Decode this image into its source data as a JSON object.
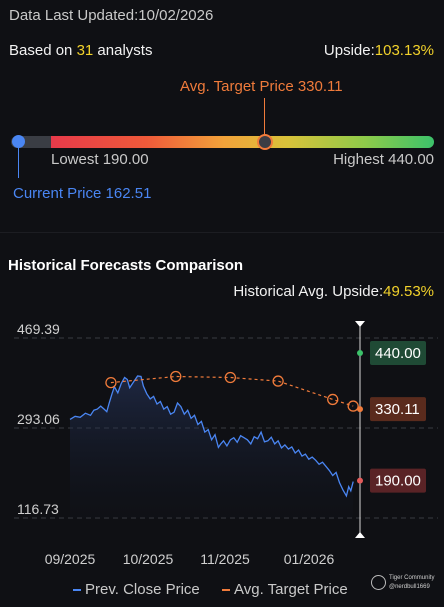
{
  "header": {
    "last_updated_label": "Data Last Updated:",
    "last_updated_value": "10/02/2026",
    "based_on_prefix": "Based on ",
    "analyst_count": "31",
    "based_on_suffix": " analysts",
    "upside_label": "Upside:",
    "upside_value": "103.13%"
  },
  "gauge": {
    "avg_target_label": "Avg. Target Price 330.11",
    "lowest_label": "Lowest 190.00",
    "highest_label": "Highest 440.00",
    "current_label": "Current Price 162.51",
    "current": 162.51,
    "lowest": 190.0,
    "highest": 440.0,
    "avg_target": 330.11,
    "track_min": 130.0,
    "track_max": 440.0
  },
  "section": {
    "title": "Historical Forecasts Comparison",
    "hist_upside_label": "Historical Avg. Upside:",
    "hist_upside_value": "49.53%"
  },
  "colors": {
    "price_line": "#4a86f3",
    "target_line": "#f07b3b",
    "high_tag_bg": "#1f4a35",
    "avg_tag_bg": "#5a2b1d",
    "low_tag_bg": "#5a2326"
  },
  "chart_data": {
    "type": "line",
    "y_ticks": [
      "469.39",
      "293.06",
      "116.73"
    ],
    "x_ticks": [
      "09/2025",
      "10/2025",
      "11/2025",
      "01/2026"
    ],
    "ylim": [
      116.73,
      469.39
    ],
    "series": [
      {
        "name": "Prev. Close Price",
        "points": [
          [
            0,
            310
          ],
          [
            1.5,
            316
          ],
          [
            3,
            314
          ],
          [
            4.5,
            322
          ],
          [
            6,
            318
          ],
          [
            7,
            328
          ],
          [
            8,
            330
          ],
          [
            9,
            336
          ],
          [
            10,
            330
          ],
          [
            10.8,
            325
          ],
          [
            11.5,
            342
          ],
          [
            12.3,
            360
          ],
          [
            13,
            374
          ],
          [
            14,
            362
          ],
          [
            15,
            380
          ],
          [
            16,
            392
          ],
          [
            16.8,
            388
          ],
          [
            17.5,
            372
          ],
          [
            18.5,
            382
          ],
          [
            19.8,
            395
          ],
          [
            20.8,
            394
          ],
          [
            21.5,
            375
          ],
          [
            22.5,
            360
          ],
          [
            23.5,
            350
          ],
          [
            24.5,
            355
          ],
          [
            25.5,
            340
          ],
          [
            26.5,
            345
          ],
          [
            27.5,
            330
          ],
          [
            28.5,
            335
          ],
          [
            29.5,
            320
          ],
          [
            30.5,
            324
          ],
          [
            31.5,
            342
          ],
          [
            32.5,
            335
          ],
          [
            33.5,
            320
          ],
          [
            34.5,
            328
          ],
          [
            35.5,
            312
          ],
          [
            36.5,
            318
          ],
          [
            37.5,
            300
          ],
          [
            38.5,
            306
          ],
          [
            39.5,
            285
          ],
          [
            40.5,
            290
          ],
          [
            41.5,
            270
          ],
          [
            42.5,
            280
          ],
          [
            43.5,
            255
          ],
          [
            44.2,
            262
          ],
          [
            45,
            268
          ],
          [
            46,
            258
          ],
          [
            47,
            270
          ],
          [
            48,
            274
          ],
          [
            49,
            265
          ],
          [
            50,
            278
          ],
          [
            51,
            274
          ],
          [
            52,
            270
          ],
          [
            53,
            262
          ],
          [
            54,
            276
          ],
          [
            55,
            272
          ],
          [
            56,
            285
          ],
          [
            57,
            266
          ],
          [
            58,
            268
          ],
          [
            59,
            275
          ],
          [
            60,
            262
          ],
          [
            61,
            268
          ],
          [
            62,
            254
          ],
          [
            63,
            260
          ],
          [
            64,
            252
          ],
          [
            65,
            256
          ],
          [
            66,
            244
          ],
          [
            67,
            250
          ],
          [
            68,
            238
          ],
          [
            69,
            242
          ],
          [
            70,
            232
          ],
          [
            71,
            236
          ],
          [
            72,
            230
          ],
          [
            73,
            222
          ],
          [
            74,
            226
          ],
          [
            75,
            218
          ],
          [
            76,
            210
          ],
          [
            77,
            200
          ],
          [
            78,
            206
          ],
          [
            79,
            186
          ],
          [
            80,
            172
          ],
          [
            81,
            160
          ],
          [
            81.7,
            178
          ],
          [
            82.3,
            170
          ],
          [
            83,
            188
          ]
        ]
      },
      {
        "name": "Avg. Target Price",
        "points": [
          [
            12,
            382
          ],
          [
            31,
            394
          ],
          [
            47,
            392
          ],
          [
            61,
            385
          ],
          [
            77,
            349
          ],
          [
            83,
            336
          ]
        ]
      }
    ],
    "x_max": 85,
    "annotations": {
      "highest": "440.00",
      "avg": "330.11",
      "lowest": "190.00"
    },
    "legend": [
      "Prev. Close Price",
      "Avg. Target Price"
    ]
  },
  "watermark": {
    "brand": "Tiger Community",
    "user": "@nerdbull1669"
  }
}
